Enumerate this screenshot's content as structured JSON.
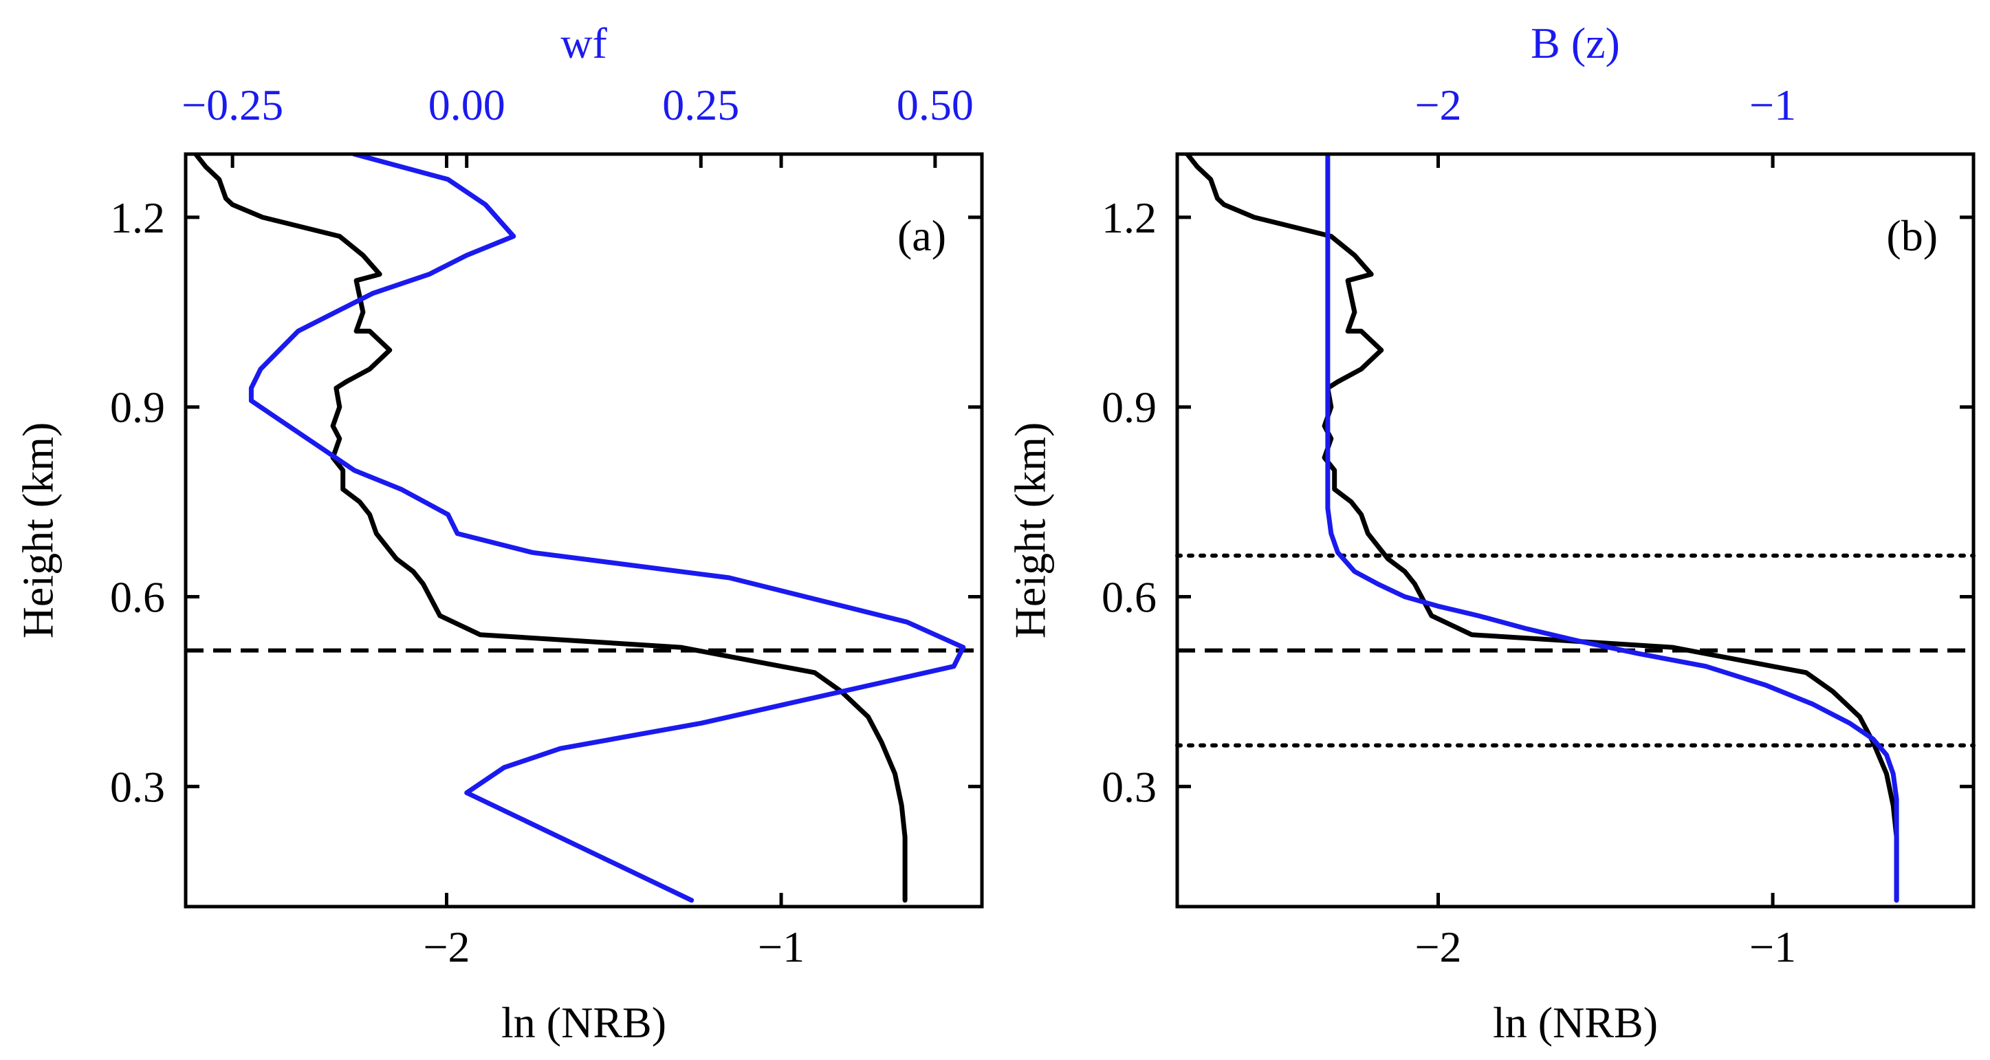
{
  "chart_data": [
    {
      "id": "a",
      "type": "line",
      "panel_label": "(a)",
      "xlabel": "ln (NRB)",
      "ylabel": "Height (km)",
      "top_label": "wf",
      "xlim": [
        -2.78,
        -0.4
      ],
      "ylim": [
        0.11,
        1.3
      ],
      "top_xlim": [
        -0.3,
        0.55
      ],
      "xticks": [
        -2,
        -1
      ],
      "xtick_labels": [
        "−2",
        "−1"
      ],
      "yticks": [
        0.3,
        0.6,
        0.9,
        1.2
      ],
      "ytick_labels": [
        "0.3",
        "0.6",
        "0.9",
        "1.2"
      ],
      "top_ticks": [
        -0.25,
        0.0,
        0.25,
        0.5
      ],
      "top_tick_labels": [
        "−0.25",
        "0.00",
        "0.25",
        "0.50"
      ],
      "colors": {
        "primary": "#000000",
        "secondary": "#1a1aef"
      },
      "series": [
        {
          "name": "ln (NRB)",
          "axis": "bottom",
          "color": "#000000",
          "x": [
            -2.75,
            -2.72,
            -2.68,
            -2.66,
            -2.64,
            -2.55,
            -2.32,
            -2.25,
            -2.2,
            -2.27,
            -2.25,
            -2.27,
            -2.23,
            -2.17,
            -2.23,
            -2.3,
            -2.33,
            -2.32,
            -2.34,
            -2.32,
            -2.34,
            -2.31,
            -2.31,
            -2.26,
            -2.23,
            -2.21,
            -2.15,
            -2.1,
            -2.07,
            -2.05,
            -2.02,
            -1.9,
            -1.6,
            -1.3,
            -1.0,
            -0.9,
            -0.82,
            -0.74,
            -0.7,
            -0.66,
            -0.64,
            -0.63,
            -0.63
          ],
          "y": [
            1.3,
            1.28,
            1.26,
            1.23,
            1.22,
            1.2,
            1.17,
            1.14,
            1.11,
            1.1,
            1.05,
            1.02,
            1.02,
            0.99,
            0.96,
            0.94,
            0.93,
            0.9,
            0.87,
            0.85,
            0.82,
            0.8,
            0.77,
            0.75,
            0.73,
            0.7,
            0.66,
            0.64,
            0.62,
            0.6,
            0.57,
            0.54,
            0.53,
            0.52,
            0.49,
            0.48,
            0.45,
            0.41,
            0.37,
            0.32,
            0.27,
            0.22,
            0.12
          ]
        },
        {
          "name": "wf",
          "axis": "top",
          "color": "#1a1aef",
          "x": [
            -0.12,
            -0.02,
            0.02,
            0.05,
            0.0,
            -0.04,
            -0.1,
            -0.14,
            -0.18,
            -0.2,
            -0.22,
            -0.23,
            -0.23,
            -0.2,
            -0.16,
            -0.12,
            -0.07,
            -0.02,
            -0.01,
            0.07,
            0.28,
            0.47,
            0.53,
            0.52,
            0.25,
            0.1,
            0.04,
            0.0,
            0.24
          ],
          "y": [
            1.3,
            1.26,
            1.22,
            1.17,
            1.14,
            1.11,
            1.08,
            1.05,
            1.02,
            0.99,
            0.96,
            0.93,
            0.91,
            0.88,
            0.84,
            0.8,
            0.77,
            0.73,
            0.7,
            0.67,
            0.63,
            0.56,
            0.52,
            0.49,
            0.4,
            0.36,
            0.33,
            0.29,
            0.12
          ]
        }
      ],
      "hlines": [
        {
          "y": 0.515,
          "style": "dashed",
          "color": "#000000"
        }
      ]
    },
    {
      "id": "b",
      "type": "line",
      "panel_label": "(b)",
      "xlabel": "ln (NRB)",
      "ylabel": "Height (km)",
      "top_label": "B (z)",
      "xlim": [
        -2.78,
        -0.4
      ],
      "ylim": [
        0.11,
        1.3
      ],
      "top_xlim": [
        -2.78,
        -0.4
      ],
      "xticks": [
        -2,
        -1
      ],
      "xtick_labels": [
        "−2",
        "−1"
      ],
      "yticks": [
        0.3,
        0.6,
        0.9,
        1.2
      ],
      "ytick_labels": [
        "0.3",
        "0.6",
        "0.9",
        "1.2"
      ],
      "top_ticks": [
        -2,
        -1
      ],
      "top_tick_labels": [
        "−2",
        "−1"
      ],
      "colors": {
        "primary": "#000000",
        "secondary": "#1a1aef"
      },
      "series": [
        {
          "name": "ln (NRB)",
          "axis": "bottom",
          "color": "#000000",
          "x": [
            -2.75,
            -2.72,
            -2.68,
            -2.66,
            -2.64,
            -2.55,
            -2.32,
            -2.25,
            -2.2,
            -2.27,
            -2.25,
            -2.27,
            -2.23,
            -2.17,
            -2.23,
            -2.3,
            -2.33,
            -2.32,
            -2.34,
            -2.32,
            -2.34,
            -2.31,
            -2.31,
            -2.26,
            -2.23,
            -2.21,
            -2.15,
            -2.1,
            -2.07,
            -2.05,
            -2.02,
            -1.9,
            -1.6,
            -1.3,
            -1.0,
            -0.9,
            -0.82,
            -0.74,
            -0.7,
            -0.66,
            -0.64,
            -0.63,
            -0.63
          ],
          "y": [
            1.3,
            1.28,
            1.26,
            1.23,
            1.22,
            1.2,
            1.17,
            1.14,
            1.11,
            1.1,
            1.05,
            1.02,
            1.02,
            0.99,
            0.96,
            0.94,
            0.93,
            0.9,
            0.87,
            0.85,
            0.82,
            0.8,
            0.77,
            0.75,
            0.73,
            0.7,
            0.66,
            0.64,
            0.62,
            0.6,
            0.57,
            0.54,
            0.53,
            0.52,
            0.49,
            0.48,
            0.45,
            0.41,
            0.37,
            0.32,
            0.27,
            0.22,
            0.12
          ]
        },
        {
          "name": "B (z)",
          "axis": "top",
          "color": "#1a1aef",
          "x": [
            -2.33,
            -2.33,
            -2.33,
            -2.33,
            -2.33,
            -2.32,
            -2.3,
            -2.25,
            -2.18,
            -2.1,
            -2.0,
            -1.88,
            -1.74,
            -1.58,
            -1.4,
            -1.2,
            -1.02,
            -0.88,
            -0.77,
            -0.7,
            -0.66,
            -0.64,
            -0.63,
            -0.63,
            -0.63
          ],
          "y": [
            1.3,
            1.1,
            0.9,
            0.8,
            0.74,
            0.7,
            0.67,
            0.64,
            0.62,
            0.6,
            0.585,
            0.57,
            0.55,
            0.53,
            0.51,
            0.49,
            0.46,
            0.43,
            0.4,
            0.375,
            0.35,
            0.32,
            0.28,
            0.2,
            0.12
          ]
        }
      ],
      "hlines": [
        {
          "y": 0.515,
          "style": "dashed",
          "color": "#000000"
        },
        {
          "y": 0.665,
          "style": "dotted",
          "color": "#000000"
        },
        {
          "y": 0.365,
          "style": "dotted",
          "color": "#000000"
        }
      ]
    }
  ]
}
